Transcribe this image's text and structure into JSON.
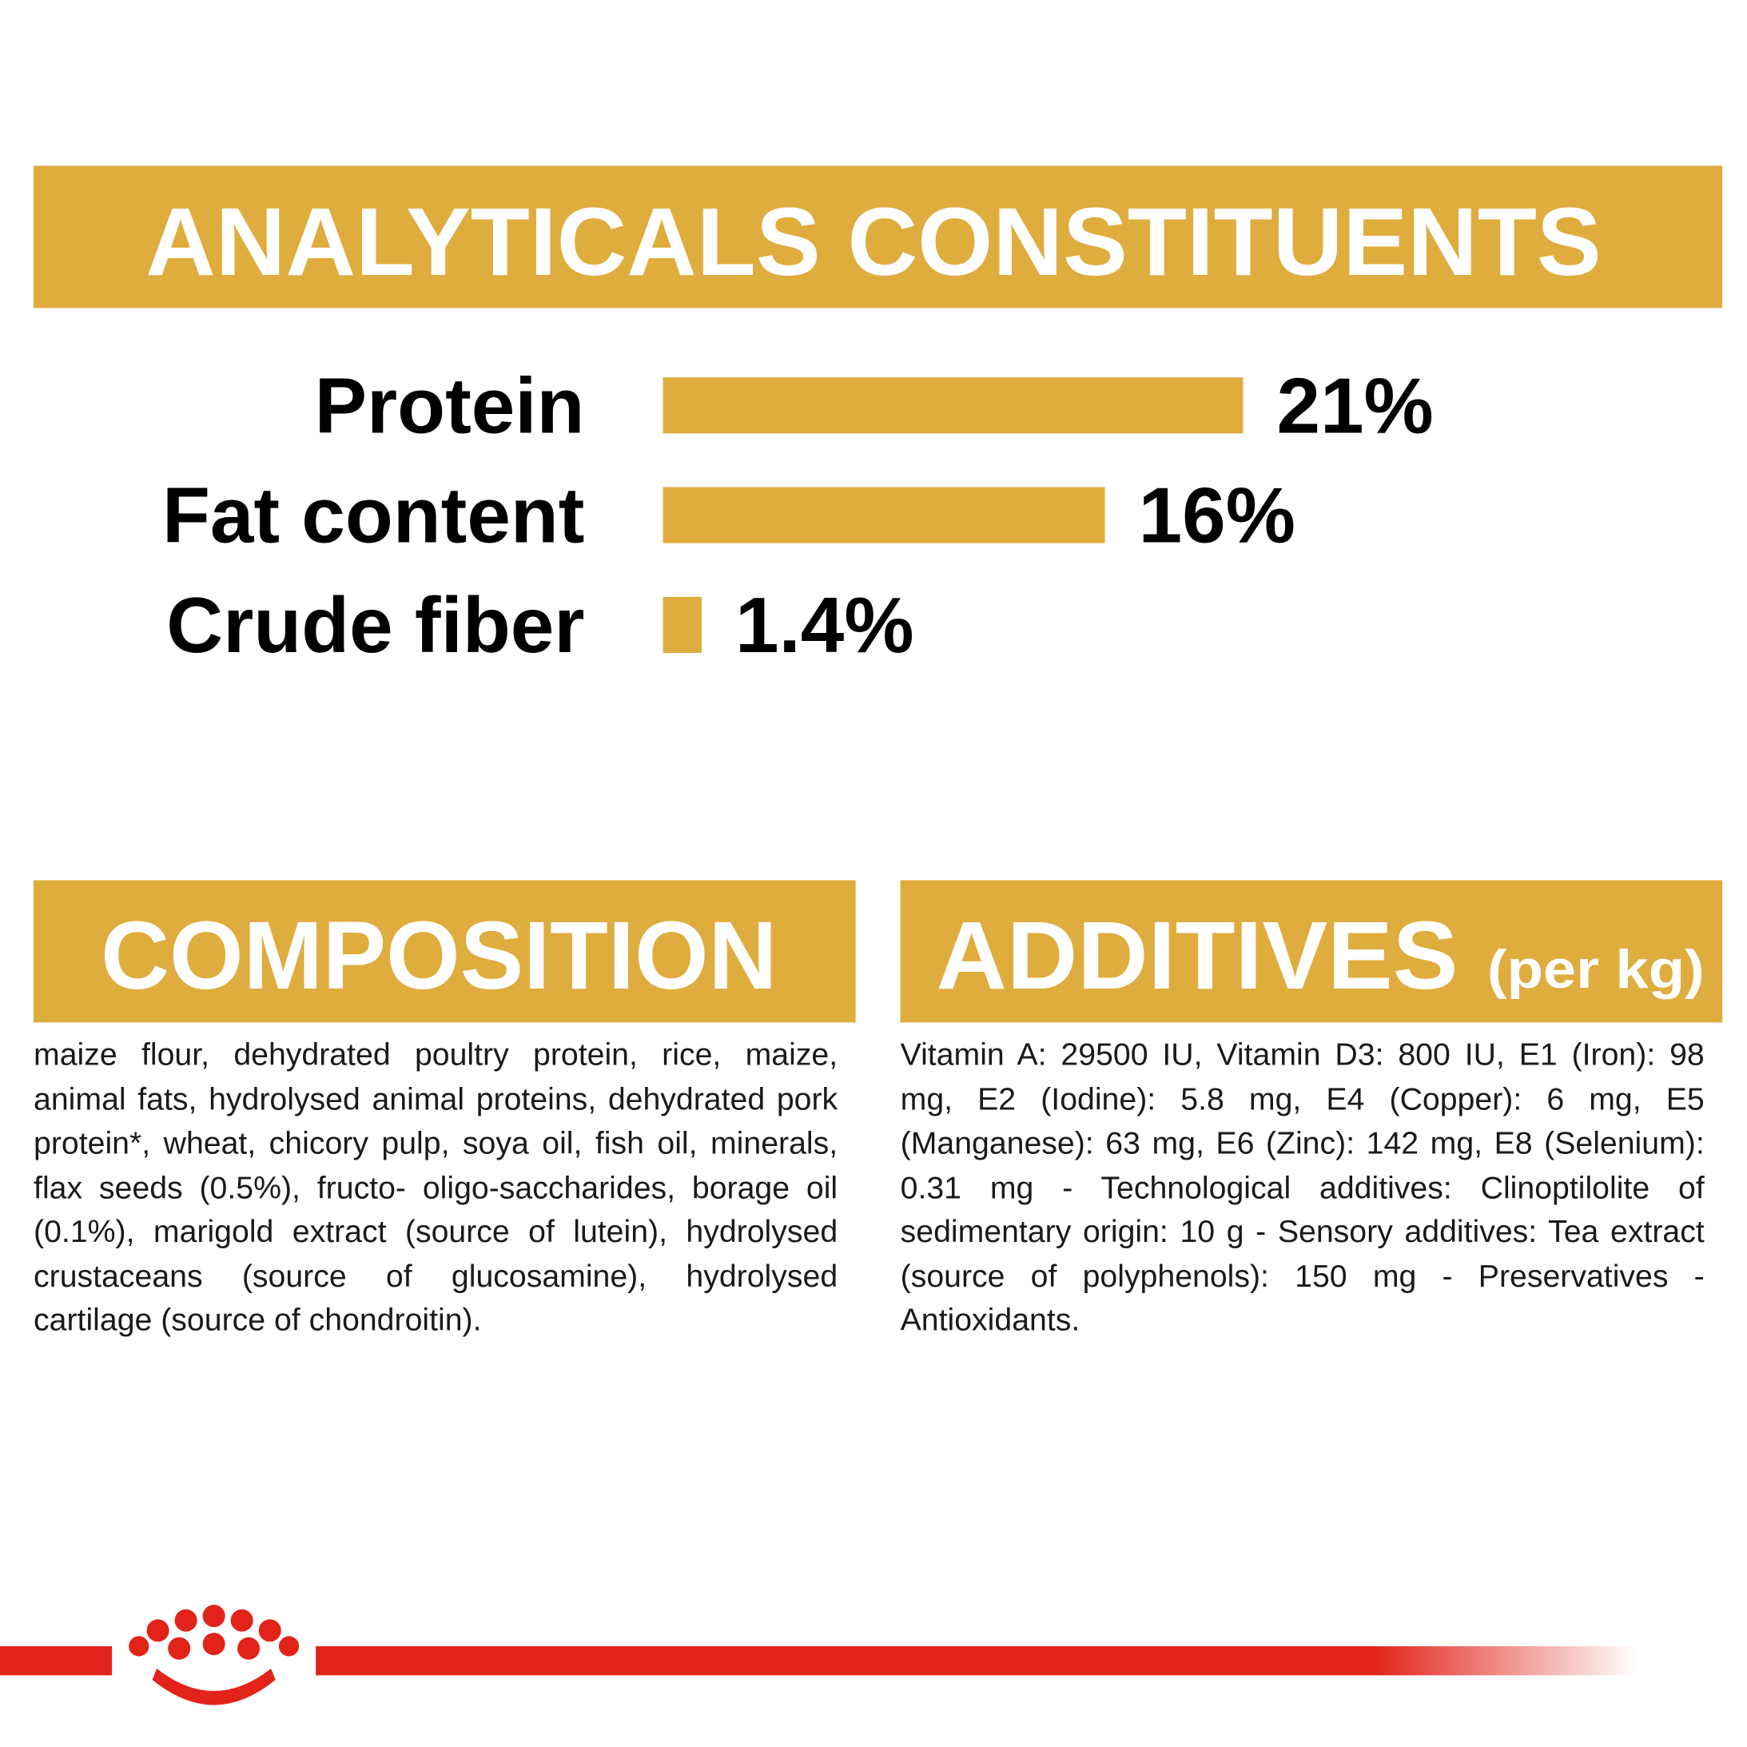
{
  "chart_data": {
    "type": "bar",
    "orientation": "horizontal",
    "title": "ANALYTICALS CONSTITUENTS",
    "categories": [
      "Protein",
      "Fat content",
      "Crude fiber"
    ],
    "values": [
      21,
      16,
      1.4
    ],
    "value_labels": [
      "21%",
      "16%",
      "1.4%"
    ],
    "color": "#dfac3e"
  },
  "composition": {
    "title": "COMPOSITION",
    "text": "maize flour, dehydrated poultry protein, rice, maize, animal fats, hydrolysed animal proteins, dehydrated pork protein*, wheat, chicory pulp, soya oil, fish oil, minerals, flax seeds (0.5%), fructo- oligo-saccharides, borage oil (0.1%), marigold extract (source of lutein), hydrolysed crustaceans (source of glucosamine), hydrolysed cartilage (source of chondroitin)."
  },
  "additives": {
    "title": "ADDITIVES",
    "unit": "(per kg)",
    "text": "Vitamin A: 29500 IU, Vitamin D3: 800 IU, E1 (Iron): 98 mg, E2 (Iodine): 5.8 mg, E4 (Copper): 6 mg, E5 (Manganese): 63 mg, E6 (Zinc): 142 mg, E8 (Selenium): 0.31 mg - Technological additives: Clinoptilolite of sedimentary origin: 10 g - Sensory additives: Tea extract (source of polyphenols): 150 mg - Preservatives - Antioxidants."
  }
}
